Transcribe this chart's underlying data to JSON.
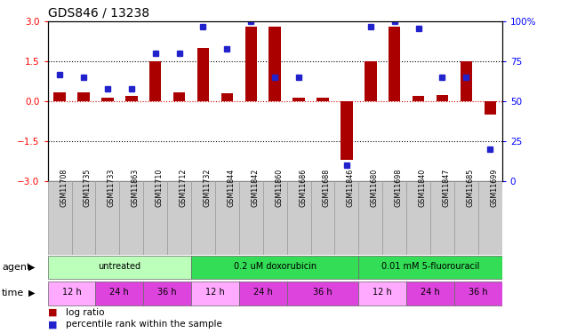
{
  "title": "GDS846 / 13238",
  "sample_ids": [
    "GSM11708",
    "GSM11735",
    "GSM11733",
    "GSM11863",
    "GSM11710",
    "GSM11712",
    "GSM11732",
    "GSM11844",
    "GSM11842",
    "GSM11860",
    "GSM11686",
    "GSM11688",
    "GSM11846",
    "GSM11680",
    "GSM11698",
    "GSM11840",
    "GSM11847",
    "GSM11685",
    "GSM11699"
  ],
  "log_ratio": [
    0.35,
    0.35,
    0.15,
    0.2,
    1.5,
    0.35,
    2.0,
    0.3,
    2.8,
    2.8,
    0.15,
    0.15,
    -2.2,
    1.5,
    2.8,
    0.2,
    0.25,
    1.5,
    -0.5
  ],
  "percentile_rank": [
    67,
    65,
    58,
    58,
    80,
    80,
    97,
    83,
    100,
    65,
    65,
    null,
    10,
    97,
    100,
    96,
    65,
    65,
    20
  ],
  "bar_color": "#aa0000",
  "dot_color": "#2222cc",
  "ylim_left": [
    -3,
    3
  ],
  "ylim_right": [
    0,
    100
  ],
  "yticks_left": [
    -3,
    -1.5,
    0,
    1.5,
    3
  ],
  "yticks_right": [
    0,
    25,
    50,
    75,
    100
  ],
  "hlines": [
    1.5,
    0.0,
    -1.5
  ],
  "hline_colors": [
    "black",
    "#cc0000",
    "black"
  ],
  "hline_styles": [
    "dotted",
    "dotted",
    "dotted"
  ],
  "agents": [
    {
      "label": "untreated",
      "start": 0,
      "end": 6,
      "color": "#bbffbb"
    },
    {
      "label": "0.2 uM doxorubicin",
      "start": 6,
      "end": 13,
      "color": "#33dd55"
    },
    {
      "label": "0.01 mM 5-fluorouracil",
      "start": 13,
      "end": 19,
      "color": "#33dd55"
    }
  ],
  "times": [
    {
      "label": "12 h",
      "start": 0,
      "end": 2,
      "color": "#ffaaff"
    },
    {
      "label": "24 h",
      "start": 2,
      "end": 4,
      "color": "#dd44dd"
    },
    {
      "label": "36 h",
      "start": 4,
      "end": 6,
      "color": "#dd44dd"
    },
    {
      "label": "12 h",
      "start": 6,
      "end": 8,
      "color": "#ffaaff"
    },
    {
      "label": "24 h",
      "start": 8,
      "end": 10,
      "color": "#dd44dd"
    },
    {
      "label": "36 h",
      "start": 10,
      "end": 13,
      "color": "#dd44dd"
    },
    {
      "label": "12 h",
      "start": 13,
      "end": 15,
      "color": "#ffaaff"
    },
    {
      "label": "24 h",
      "start": 15,
      "end": 17,
      "color": "#dd44dd"
    },
    {
      "label": "36 h",
      "start": 17,
      "end": 19,
      "color": "#dd44dd"
    }
  ],
  "agent_label": "agent",
  "time_label": "time",
  "legend_items": [
    {
      "label": "log ratio",
      "color": "#aa0000"
    },
    {
      "label": "percentile rank within the sample",
      "color": "#2222cc"
    }
  ],
  "cell_bg": "#cccccc",
  "plot_bg": "#ffffff"
}
